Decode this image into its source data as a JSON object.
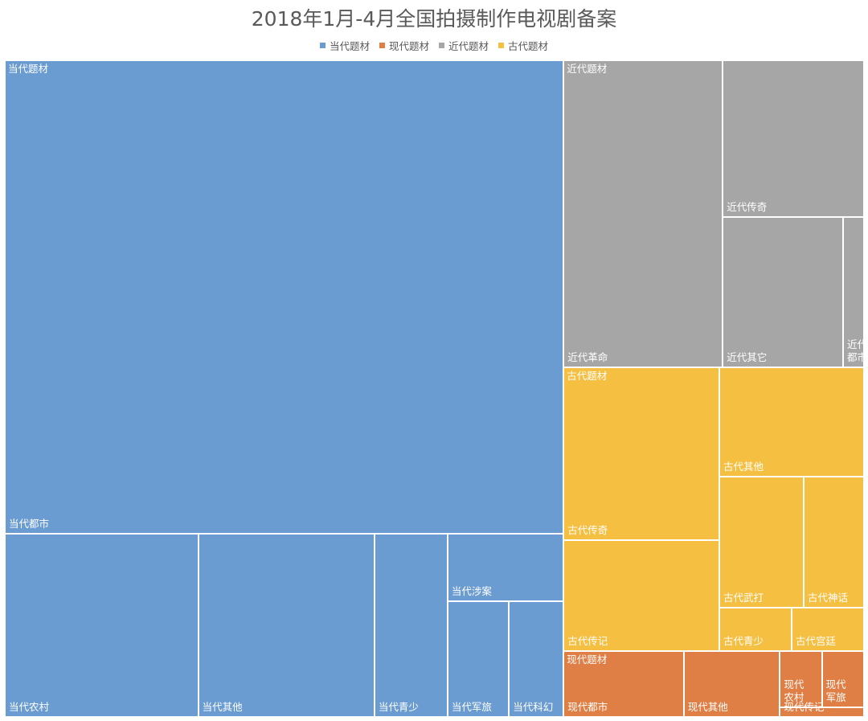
{
  "chart_data": {
    "type": "treemap",
    "title": "2018年1月-4月全国拍摄制作电视剧备案",
    "legend_position": "top-center",
    "groups": [
      {
        "name": "当代题材",
        "color": "#6a9bd1",
        "items": [
          {
            "name": "当代都市",
            "value": 335
          },
          {
            "name": "当代农村",
            "value": 45
          },
          {
            "name": "当代其他",
            "value": 41
          },
          {
            "name": "当代青少",
            "value": 17
          },
          {
            "name": "当代涉案",
            "value": 10
          },
          {
            "name": "当代军旅",
            "value": 9
          },
          {
            "name": "当代科幻",
            "value": 8
          }
        ]
      },
      {
        "name": "现代题材",
        "color": "#e07f45",
        "items": [
          {
            "name": "现代都市",
            "value": 10
          },
          {
            "name": "现代其他",
            "value": 8
          },
          {
            "name": "现代农村",
            "value": 3
          },
          {
            "name": "现代军旅",
            "value": 3
          },
          {
            "name": "现代传记",
            "value": 1
          }
        ]
      },
      {
        "name": "近代题材",
        "color": "#a6a6a6",
        "items": [
          {
            "name": "近代革命",
            "value": 62
          },
          {
            "name": "近代传奇",
            "value": 28
          },
          {
            "name": "近代其它",
            "value": 23
          },
          {
            "name": "近代都市",
            "value": 4
          }
        ]
      },
      {
        "name": "古代题材",
        "color": "#f5bf42",
        "items": [
          {
            "name": "古代传奇",
            "value": 34
          },
          {
            "name": "古代传记",
            "value": 22
          },
          {
            "name": "古代其他",
            "value": 20
          },
          {
            "name": "古代武打",
            "value": 14
          },
          {
            "name": "古代神话",
            "value": 10
          },
          {
            "name": "古代青少",
            "value": 4
          },
          {
            "name": "古代宫廷",
            "value": 4
          }
        ]
      }
    ]
  }
}
